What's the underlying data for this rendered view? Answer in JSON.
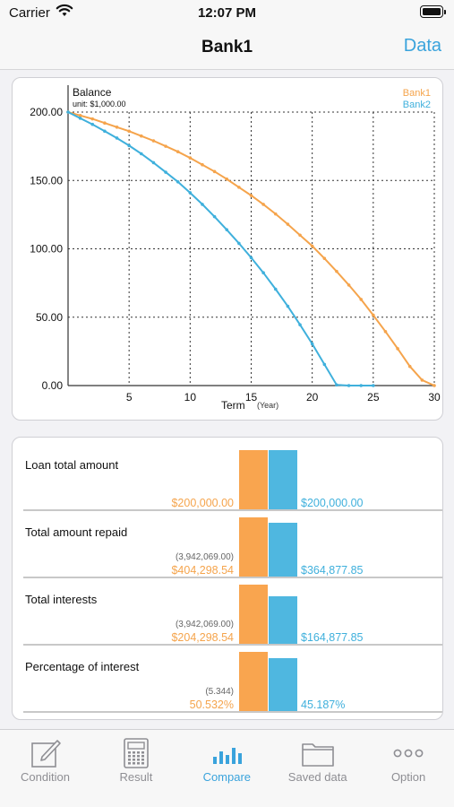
{
  "status": {
    "carrier": "Carrier",
    "time": "12:07 PM"
  },
  "nav": {
    "title": "Bank1",
    "action": "Data"
  },
  "chart_data": {
    "type": "line",
    "title": "Balance",
    "subtitle": "unit: $1,000.00",
    "xlabel": "Term",
    "xunit": "(Year)",
    "xlim": [
      0,
      30
    ],
    "ylim": [
      0,
      200
    ],
    "xticks": [
      "5",
      "10",
      "15",
      "20",
      "25",
      "30"
    ],
    "yticks": [
      "0.00",
      "50.00",
      "100.00",
      "150.00",
      "200.00"
    ],
    "grid": true,
    "legend_position": "top-right",
    "series": [
      {
        "name": "Bank1",
        "color": "#f5a44c",
        "x": [
          0,
          1,
          2,
          3,
          4,
          5,
          6,
          7,
          8,
          9,
          10,
          11,
          12,
          13,
          14,
          15,
          16,
          17,
          18,
          19,
          20,
          21,
          22,
          23,
          24,
          25,
          26,
          27,
          28,
          29,
          30
        ],
        "y": [
          200,
          197.5,
          195,
          192,
          189,
          186,
          182.5,
          179,
          175,
          171,
          166.5,
          161.5,
          156.5,
          151,
          145,
          139,
          132.5,
          125.5,
          118,
          110,
          102,
          93,
          83.5,
          73.5,
          63,
          51.5,
          39.5,
          27,
          14,
          4,
          0
        ]
      },
      {
        "name": "Bank2",
        "color": "#3fb0dc",
        "x": [
          0,
          1,
          2,
          3,
          4,
          5,
          6,
          7,
          8,
          9,
          10,
          11,
          12,
          13,
          14,
          15,
          16,
          17,
          18,
          19,
          20,
          21,
          22,
          23,
          24,
          25
        ],
        "y": [
          200,
          195.5,
          191,
          186,
          181,
          175.5,
          169.5,
          163,
          156,
          149,
          141,
          132.5,
          123.5,
          114,
          104,
          93.5,
          82.5,
          70.5,
          58,
          44.5,
          30.5,
          15.5,
          0.5,
          0,
          0,
          0
        ]
      }
    ]
  },
  "compare": {
    "legend1_color": "#f9a54f",
    "legend2_color": "#4fb7e0",
    "rows": [
      {
        "label": "Loan total amount",
        "sub": "",
        "v1": "$200,000.00",
        "v2": "$200,000.00",
        "r1": 1.0,
        "r2": 1.0
      },
      {
        "label": "Total amount repaid",
        "sub": "(3,942,069.00)",
        "v1": "$404,298.54",
        "v2": "$364,877.85",
        "r1": 1.0,
        "r2": 0.9025
      },
      {
        "label": "Total interests",
        "sub": "(3,942,069.00)",
        "v1": "$204,298.54",
        "v2": "$164,877.85",
        "r1": 1.0,
        "r2": 0.807
      },
      {
        "label": "Percentage of interest",
        "sub": "(5.344)",
        "v1": "50.532%",
        "v2": "45.187%",
        "r1": 1.0,
        "r2": 0.894
      }
    ]
  },
  "tabs": [
    {
      "label": "Condition",
      "icon": "edit-icon",
      "active": false
    },
    {
      "label": "Result",
      "icon": "calculator-icon",
      "active": false
    },
    {
      "label": "Compare",
      "icon": "bar-chart-icon",
      "active": true
    },
    {
      "label": "Saved data",
      "icon": "folder-icon",
      "active": false
    },
    {
      "label": "Option",
      "icon": "more-icon",
      "active": false
    }
  ]
}
